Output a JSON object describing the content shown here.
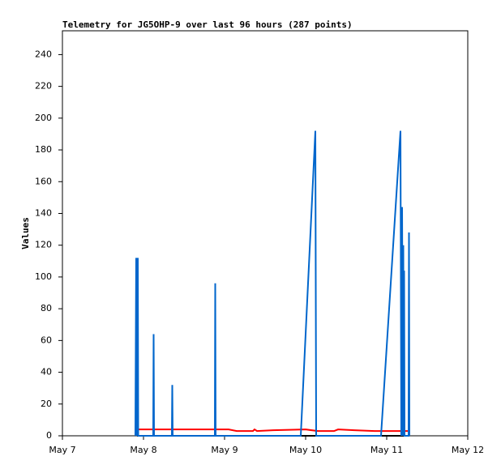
{
  "chart_data": {
    "type": "line",
    "title": "Telemetry for JG5OHP-9 over last 96 hours (287 points)",
    "y_label": "Values",
    "xlim": [
      7,
      12
    ],
    "xticks": [
      {
        "value": 7,
        "label": "May 7"
      },
      {
        "value": 8,
        "label": "May 8"
      },
      {
        "value": 9,
        "label": "May 9"
      },
      {
        "value": 10,
        "label": "May 10"
      },
      {
        "value": 11,
        "label": "May 11"
      },
      {
        "value": 12,
        "label": "May 12"
      }
    ],
    "ylim": [
      0,
      255
    ],
    "yticks": [
      0,
      20,
      40,
      60,
      80,
      100,
      120,
      140,
      160,
      180,
      200,
      220,
      240
    ],
    "series": [
      {
        "color": "#000000",
        "x": [
          7.92,
          11.28
        ],
        "values": [
          0,
          0
        ]
      },
      {
        "color": "#ff0000",
        "x": [
          7.92,
          8.9,
          9.05,
          9.15,
          9.35,
          9.37,
          9.4,
          9.6,
          10.0,
          10.15,
          10.35,
          10.4,
          10.6,
          10.85,
          11.28
        ],
        "values": [
          4,
          4,
          4,
          3,
          3,
          4,
          3,
          3.5,
          4,
          3,
          3,
          4,
          3.5,
          3,
          3
        ]
      },
      {
        "color": "#0066cc",
        "x": [
          7.9,
          7.91,
          7.915,
          7.93,
          7.935,
          8.12,
          8.125,
          8.13,
          8.35,
          8.355,
          8.36,
          8.88,
          8.885,
          8.89,
          9.94,
          10.12,
          10.13,
          10.93,
          11.17,
          11.18,
          11.19,
          11.2,
          11.205,
          11.21,
          11.215,
          11.22,
          11.27,
          11.275,
          11.28
        ],
        "values": [
          0,
          112,
          0,
          112,
          0,
          0,
          64,
          0,
          0,
          32,
          0,
          0,
          96,
          0,
          0,
          192,
          0,
          0,
          192,
          0,
          144,
          0,
          120,
          0,
          104,
          0,
          0,
          128,
          0
        ]
      }
    ]
  }
}
